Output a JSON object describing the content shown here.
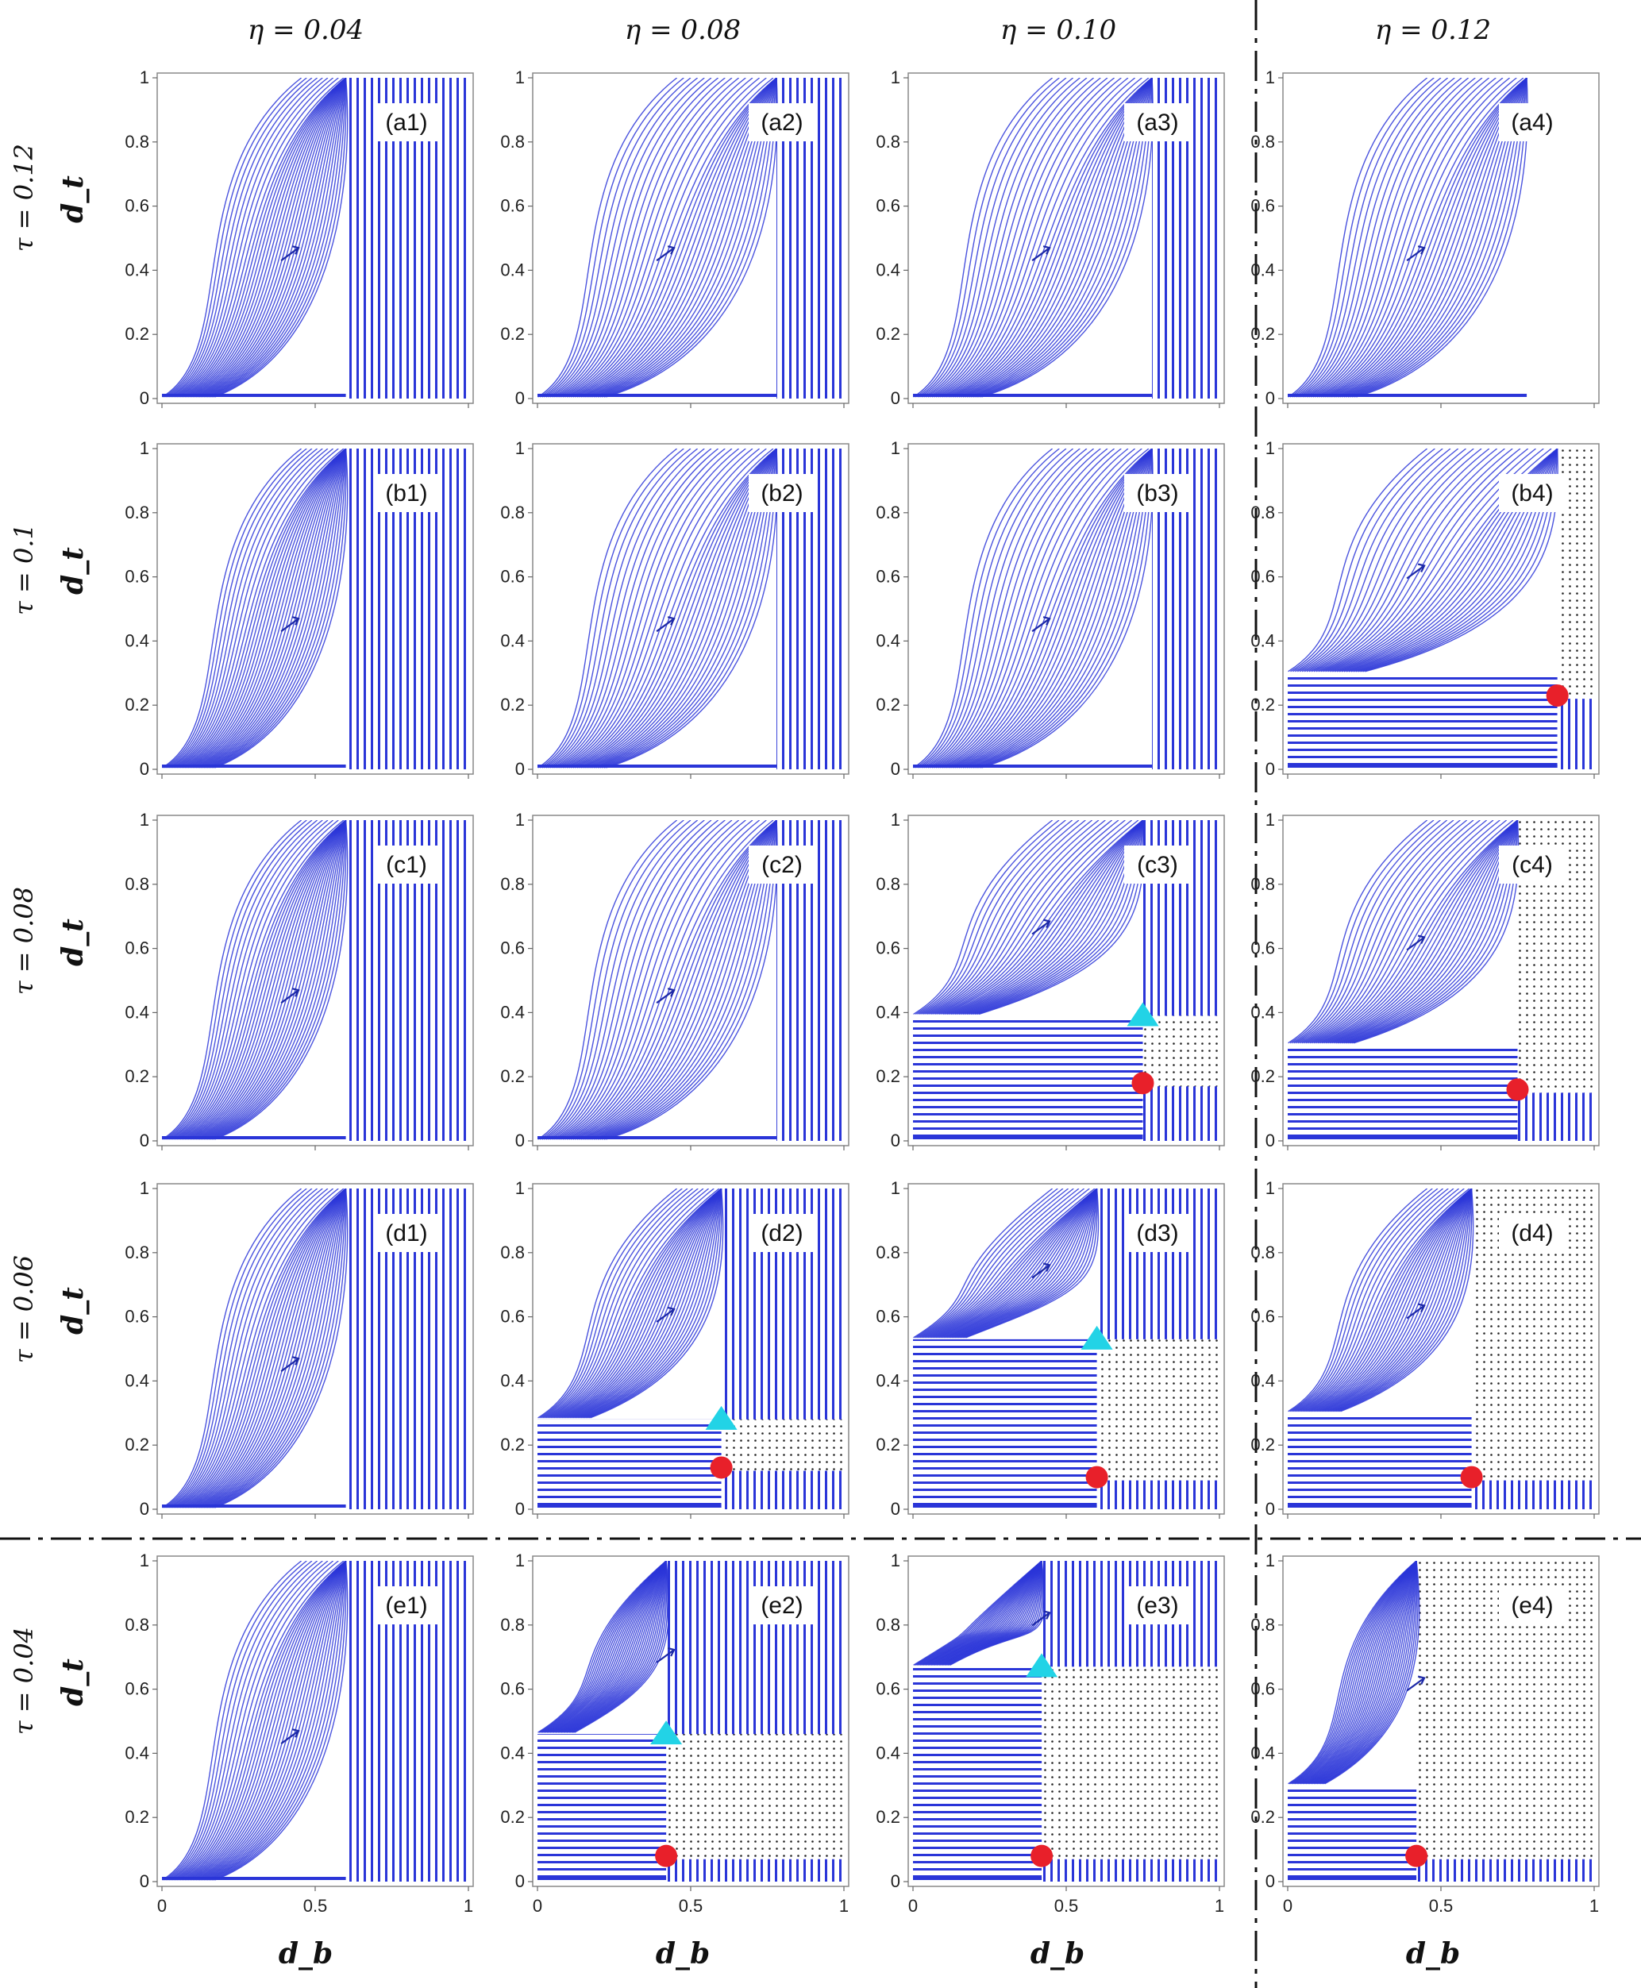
{
  "figure": {
    "columns": [
      "η = 0.04",
      "η = 0.08",
      "η = 0.10",
      "η = 0.12"
    ],
    "rows": [
      "τ = 0.12",
      "τ = 0.1",
      "τ = 0.08",
      "τ = 0.06",
      "τ = 0.04"
    ],
    "ylabel": "d_t",
    "xlabel": "d_b",
    "xticks": [
      "0",
      "0.5",
      "1"
    ],
    "yticks": [
      "0",
      "0.2",
      "0.4",
      "0.6",
      "0.8",
      "1"
    ],
    "colors": {
      "streamline": "#2a35d8",
      "stable_point": "#e8202a",
      "saddle_point": "#22d3e6",
      "background": "#ffffff"
    }
  },
  "chart_data": [
    {
      "type": "streamplot",
      "label": "(a1)",
      "eta": 0.04,
      "tau": 0.12,
      "xlim": [
        0,
        1
      ],
      "ylim": [
        0,
        1
      ],
      "stable_points": [],
      "saddle_points": []
    },
    {
      "type": "streamplot",
      "label": "(a2)",
      "eta": 0.08,
      "tau": 0.12,
      "xlim": [
        0,
        1
      ],
      "ylim": [
        0,
        1
      ],
      "stable_points": [],
      "saddle_points": []
    },
    {
      "type": "streamplot",
      "label": "(a3)",
      "eta": 0.1,
      "tau": 0.12,
      "xlim": [
        0,
        1
      ],
      "ylim": [
        0,
        1
      ],
      "stable_points": [],
      "saddle_points": []
    },
    {
      "type": "streamplot",
      "label": "(a4)",
      "eta": 0.12,
      "tau": 0.12,
      "xlim": [
        0,
        1
      ],
      "ylim": [
        0,
        1
      ],
      "stable_points": [],
      "saddle_points": []
    },
    {
      "type": "streamplot",
      "label": "(b1)",
      "eta": 0.04,
      "tau": 0.1,
      "xlim": [
        0,
        1
      ],
      "ylim": [
        0,
        1
      ],
      "stable_points": [],
      "saddle_points": []
    },
    {
      "type": "streamplot",
      "label": "(b2)",
      "eta": 0.08,
      "tau": 0.1,
      "xlim": [
        0,
        1
      ],
      "ylim": [
        0,
        1
      ],
      "stable_points": [],
      "saddle_points": []
    },
    {
      "type": "streamplot",
      "label": "(b3)",
      "eta": 0.1,
      "tau": 0.1,
      "xlim": [
        0,
        1
      ],
      "ylim": [
        0,
        1
      ],
      "stable_points": [],
      "saddle_points": []
    },
    {
      "type": "streamplot",
      "label": "(b4)",
      "eta": 0.12,
      "tau": 0.1,
      "xlim": [
        0,
        1
      ],
      "ylim": [
        0,
        1
      ],
      "stable_points": [
        [
          0.88,
          0.23
        ]
      ],
      "saddle_points": []
    },
    {
      "type": "streamplot",
      "label": "(c1)",
      "eta": 0.04,
      "tau": 0.08,
      "xlim": [
        0,
        1
      ],
      "ylim": [
        0,
        1
      ],
      "stable_points": [],
      "saddle_points": []
    },
    {
      "type": "streamplot",
      "label": "(c2)",
      "eta": 0.08,
      "tau": 0.08,
      "xlim": [
        0,
        1
      ],
      "ylim": [
        0,
        1
      ],
      "stable_points": [],
      "saddle_points": []
    },
    {
      "type": "streamplot",
      "label": "(c3)",
      "eta": 0.1,
      "tau": 0.08,
      "xlim": [
        0,
        1
      ],
      "ylim": [
        0,
        1
      ],
      "stable_points": [
        [
          0.75,
          0.18
        ]
      ],
      "saddle_points": [
        [
          0.75,
          0.39
        ]
      ]
    },
    {
      "type": "streamplot",
      "label": "(c4)",
      "eta": 0.12,
      "tau": 0.08,
      "xlim": [
        0,
        1
      ],
      "ylim": [
        0,
        1
      ],
      "stable_points": [
        [
          0.75,
          0.16
        ]
      ],
      "saddle_points": []
    },
    {
      "type": "streamplot",
      "label": "(d1)",
      "eta": 0.04,
      "tau": 0.06,
      "xlim": [
        0,
        1
      ],
      "ylim": [
        0,
        1
      ],
      "stable_points": [],
      "saddle_points": []
    },
    {
      "type": "streamplot",
      "label": "(d2)",
      "eta": 0.08,
      "tau": 0.06,
      "xlim": [
        0,
        1
      ],
      "ylim": [
        0,
        1
      ],
      "stable_points": [
        [
          0.6,
          0.13
        ]
      ],
      "saddle_points": [
        [
          0.6,
          0.28
        ]
      ]
    },
    {
      "type": "streamplot",
      "label": "(d3)",
      "eta": 0.1,
      "tau": 0.06,
      "xlim": [
        0,
        1
      ],
      "ylim": [
        0,
        1
      ],
      "stable_points": [
        [
          0.6,
          0.1
        ]
      ],
      "saddle_points": [
        [
          0.6,
          0.53
        ]
      ]
    },
    {
      "type": "streamplot",
      "label": "(d4)",
      "eta": 0.12,
      "tau": 0.06,
      "xlim": [
        0,
        1
      ],
      "ylim": [
        0,
        1
      ],
      "stable_points": [
        [
          0.6,
          0.1
        ]
      ],
      "saddle_points": []
    },
    {
      "type": "streamplot",
      "label": "(e1)",
      "eta": 0.04,
      "tau": 0.04,
      "xlim": [
        0,
        1
      ],
      "ylim": [
        0,
        1
      ],
      "stable_points": [],
      "saddle_points": []
    },
    {
      "type": "streamplot",
      "label": "(e2)",
      "eta": 0.08,
      "tau": 0.04,
      "xlim": [
        0,
        1
      ],
      "ylim": [
        0,
        1
      ],
      "stable_points": [
        [
          0.42,
          0.08
        ]
      ],
      "saddle_points": [
        [
          0.42,
          0.46
        ]
      ]
    },
    {
      "type": "streamplot",
      "label": "(e3)",
      "eta": 0.1,
      "tau": 0.04,
      "xlim": [
        0,
        1
      ],
      "ylim": [
        0,
        1
      ],
      "stable_points": [
        [
          0.42,
          0.08
        ]
      ],
      "saddle_points": [
        [
          0.42,
          0.67
        ]
      ]
    },
    {
      "type": "streamplot",
      "label": "(e4)",
      "eta": 0.12,
      "tau": 0.04,
      "xlim": [
        0,
        1
      ],
      "ylim": [
        0,
        1
      ],
      "stable_points": [
        [
          0.42,
          0.08
        ]
      ],
      "saddle_points": []
    }
  ]
}
